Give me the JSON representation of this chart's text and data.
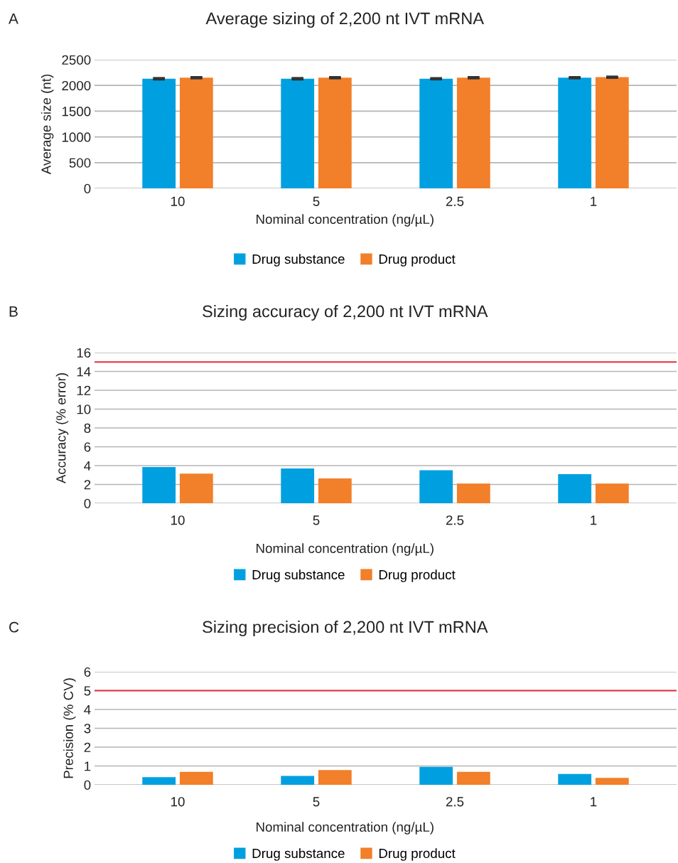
{
  "chart_data": [
    {
      "type": "bar",
      "title": "Average sizing of 2,200 nt IVT mRNA",
      "xlabel": "Nominal concentration (ng/µL)",
      "ylabel": "Average size (nt)",
      "annotations": [
        "A"
      ],
      "categories": [
        "10",
        "5",
        "2.5",
        "1"
      ],
      "ylim": [
        0,
        2500
      ],
      "yticks": [
        0,
        500,
        1000,
        1500,
        2000,
        2500
      ],
      "grid": "y",
      "legend": "bottom",
      "series": [
        {
          "name": "Drug substance",
          "color": "#00a0e0",
          "values": [
            2130,
            2130,
            2130,
            2150
          ],
          "errors": [
            10,
            10,
            8,
            8
          ]
        },
        {
          "name": "Drug product",
          "color": "#f27f29",
          "values": [
            2150,
            2150,
            2150,
            2160
          ],
          "errors": [
            8,
            8,
            8,
            8
          ]
        }
      ]
    },
    {
      "type": "bar",
      "title": "Sizing accuracy of 2,200 nt IVT mRNA",
      "xlabel": "Nominal concentration (ng/µL)",
      "ylabel": "Accuracy (% error)",
      "annotations": [
        "B"
      ],
      "categories": [
        "10",
        "5",
        "2.5",
        "1"
      ],
      "ylim": [
        0,
        16
      ],
      "yticks": [
        0,
        2,
        4,
        6,
        8,
        10,
        12,
        14,
        16
      ],
      "grid": "y",
      "legend": "bottom",
      "ref_lines": [
        {
          "axis": "y",
          "value": 15,
          "color": "#e0303c"
        }
      ],
      "series": [
        {
          "name": "Drug substance",
          "color": "#00a0e0",
          "values": [
            3.85,
            3.7,
            3.5,
            3.1
          ]
        },
        {
          "name": "Drug product",
          "color": "#f27f29",
          "values": [
            3.15,
            2.65,
            2.1,
            2.1
          ]
        }
      ]
    },
    {
      "type": "bar",
      "title": "Sizing precision of 2,200 nt IVT mRNA",
      "xlabel": "Nominal concentration (ng/µL)",
      "ylabel": "Precision (% CV)",
      "annotations": [
        "C"
      ],
      "categories": [
        "10",
        "5",
        "2.5",
        "1"
      ],
      "ylim": [
        0,
        6
      ],
      "yticks": [
        0,
        1,
        2,
        3,
        4,
        5,
        6
      ],
      "grid": "y",
      "legend": "bottom",
      "ref_lines": [
        {
          "axis": "y",
          "value": 5,
          "color": "#e0303c"
        }
      ],
      "series": [
        {
          "name": "Drug substance",
          "color": "#00a0e0",
          "values": [
            0.41,
            0.47,
            0.95,
            0.58
          ]
        },
        {
          "name": "Drug product",
          "color": "#f27f29",
          "values": [
            0.69,
            0.78,
            0.69,
            0.37
          ]
        }
      ]
    }
  ]
}
